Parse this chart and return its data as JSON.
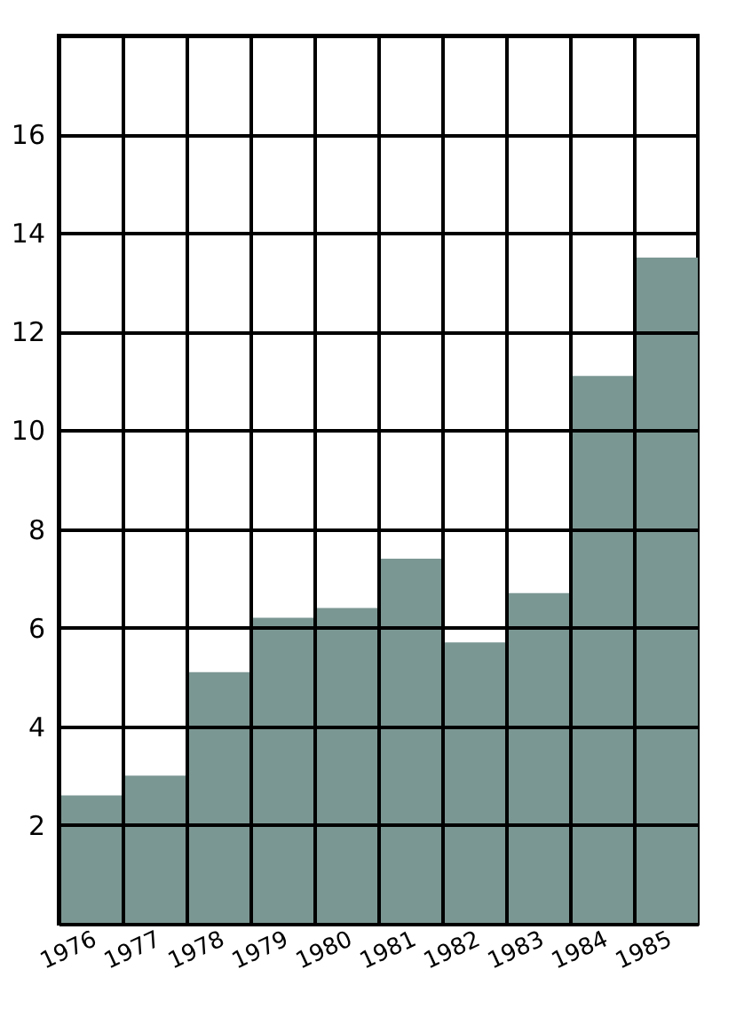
{
  "chart_data": {
    "type": "bar",
    "categories": [
      "1976",
      "1977",
      "1978",
      "1979",
      "1980",
      "1981",
      "1982",
      "1983",
      "1984",
      "1985"
    ],
    "values": [
      2.6,
      3.0,
      5.1,
      6.2,
      6.4,
      7.4,
      5.7,
      6.7,
      11.1,
      13.5
    ],
    "color": "#7b9793",
    "ylim": [
      0,
      18
    ],
    "yticks": [
      {
        "value": 0,
        "label": null
      },
      2,
      4,
      6,
      8,
      10,
      12,
      14,
      16,
      {
        "value": 18,
        "label": null
      }
    ],
    "grid": true
  }
}
